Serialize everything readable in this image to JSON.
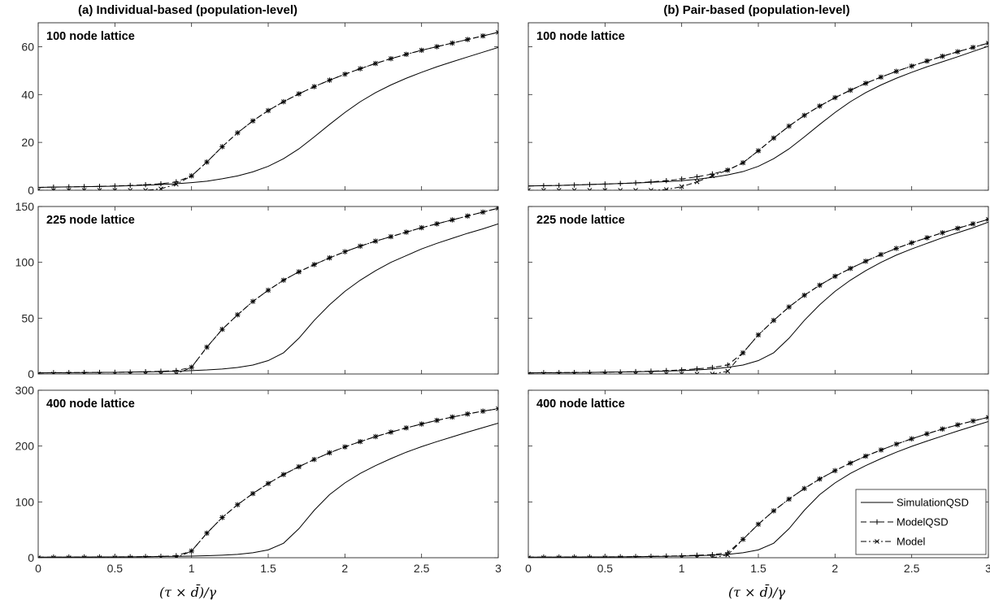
{
  "figure": {
    "columns": [
      {
        "title": "(a) Individual-based (population-level)"
      },
      {
        "title": "(b) Pair-based (population-level)"
      }
    ],
    "xlabel": "(τ × d̄)/γ"
  },
  "legend": {
    "placement": "bottom-right of panel (b) 400 node lattice",
    "entries": [
      {
        "label": "SimulationQSD",
        "line": "solid",
        "marker": "none"
      },
      {
        "label": "ModelQSD",
        "line": "dashed",
        "marker": "plus"
      },
      {
        "label": "Model",
        "line": "dash-dot",
        "marker": "x"
      }
    ]
  },
  "chart_data": [
    {
      "type": "line",
      "column": 0,
      "row": 0,
      "label": "100 node lattice",
      "xlim": [
        0,
        3
      ],
      "ylim": [
        0,
        70
      ],
      "xticks": [
        0,
        0.5,
        1,
        1.5,
        2,
        2.5,
        3
      ],
      "yticks": [
        0,
        20,
        40,
        60
      ],
      "x": [
        0,
        0.1,
        0.2,
        0.3,
        0.4,
        0.5,
        0.6,
        0.7,
        0.8,
        0.9,
        1.0,
        1.1,
        1.2,
        1.3,
        1.4,
        1.5,
        1.6,
        1.7,
        1.8,
        1.9,
        2.0,
        2.1,
        2.2,
        2.3,
        2.4,
        2.5,
        2.6,
        2.7,
        2.8,
        2.9,
        3.0
      ],
      "series": [
        {
          "name": "SimulationQSD",
          "values": [
            1.2,
            1.3,
            1.4,
            1.5,
            1.6,
            1.7,
            1.9,
            2.1,
            2.4,
            2.7,
            3.2,
            3.8,
            4.8,
            6.0,
            7.7,
            10.0,
            13.2,
            17.3,
            22.3,
            27.5,
            32.5,
            37.0,
            40.8,
            44.0,
            46.8,
            49.3,
            51.6,
            53.7,
            55.7,
            57.7,
            59.7
          ]
        },
        {
          "name": "ModelQSD",
          "values": [
            1.2,
            1.3,
            1.4,
            1.5,
            1.6,
            1.8,
            2.0,
            2.3,
            2.7,
            3.5,
            6.0,
            11.8,
            18.2,
            24.0,
            29.0,
            33.3,
            37.0,
            40.3,
            43.3,
            46.0,
            48.5,
            50.8,
            53.0,
            55.0,
            56.8,
            58.5,
            60.0,
            61.5,
            63.0,
            64.5,
            66.0
          ]
        },
        {
          "name": "Model",
          "values": [
            0,
            0,
            0,
            0,
            0,
            0,
            0,
            0,
            0.6,
            2.5,
            6.0,
            11.8,
            18.2,
            24.0,
            29.0,
            33.3,
            37.0,
            40.3,
            43.3,
            46.0,
            48.5,
            50.8,
            53.0,
            55.0,
            56.8,
            58.5,
            60.0,
            61.5,
            63.0,
            64.5,
            66.0
          ]
        }
      ]
    },
    {
      "type": "line",
      "column": 0,
      "row": 1,
      "label": "225 node lattice",
      "xlim": [
        0,
        3
      ],
      "ylim": [
        0,
        150
      ],
      "xticks": [
        0,
        0.5,
        1,
        1.5,
        2,
        2.5,
        3
      ],
      "yticks": [
        0,
        50,
        100,
        150
      ],
      "x": [
        0,
        0.1,
        0.2,
        0.3,
        0.4,
        0.5,
        0.6,
        0.7,
        0.8,
        0.9,
        1.0,
        1.1,
        1.2,
        1.3,
        1.4,
        1.5,
        1.6,
        1.7,
        1.8,
        1.9,
        2.0,
        2.1,
        2.2,
        2.3,
        2.4,
        2.5,
        2.6,
        2.7,
        2.8,
        2.9,
        3.0
      ],
      "series": [
        {
          "name": "SimulationQSD",
          "values": [
            1.0,
            1.1,
            1.2,
            1.3,
            1.4,
            1.5,
            1.7,
            1.9,
            2.1,
            2.5,
            3.0,
            3.6,
            4.5,
            5.8,
            8.0,
            12.0,
            19.0,
            32.0,
            48.0,
            62.0,
            74.0,
            84.0,
            92.5,
            100.0,
            106.0,
            112.0,
            117.0,
            121.5,
            126.0,
            130.0,
            134.5
          ]
        },
        {
          "name": "ModelQSD",
          "values": [
            1.0,
            1.1,
            1.2,
            1.3,
            1.4,
            1.5,
            1.7,
            2.0,
            2.4,
            3.0,
            6.0,
            24.0,
            40.0,
            53.0,
            65.0,
            75.0,
            84.0,
            91.5,
            98.0,
            104.0,
            109.5,
            114.5,
            119.0,
            123.0,
            127.0,
            131.0,
            134.5,
            138.0,
            141.5,
            145.0,
            148.5
          ]
        },
        {
          "name": "Model",
          "values": [
            0,
            0,
            0,
            0,
            0,
            0,
            0,
            0,
            0,
            0,
            6.0,
            24.0,
            40.0,
            53.0,
            65.0,
            75.0,
            84.0,
            91.5,
            98.0,
            104.0,
            109.5,
            114.5,
            119.0,
            123.0,
            127.0,
            131.0,
            134.5,
            138.0,
            141.5,
            145.0,
            148.5
          ]
        }
      ]
    },
    {
      "type": "line",
      "column": 0,
      "row": 2,
      "label": "400 node lattice",
      "xlim": [
        0,
        3
      ],
      "ylim": [
        0,
        300
      ],
      "xticks": [
        0,
        0.5,
        1,
        1.5,
        2,
        2.5,
        3
      ],
      "yticks": [
        0,
        100,
        200,
        300
      ],
      "x": [
        0,
        0.1,
        0.2,
        0.3,
        0.4,
        0.5,
        0.6,
        0.7,
        0.8,
        0.9,
        1.0,
        1.1,
        1.2,
        1.3,
        1.4,
        1.5,
        1.6,
        1.7,
        1.8,
        1.9,
        2.0,
        2.1,
        2.2,
        2.3,
        2.4,
        2.5,
        2.6,
        2.7,
        2.8,
        2.9,
        3.0
      ],
      "series": [
        {
          "name": "SimulationQSD",
          "values": [
            1.0,
            1.1,
            1.2,
            1.3,
            1.4,
            1.5,
            1.7,
            1.9,
            2.2,
            2.5,
            3.0,
            3.6,
            4.5,
            6.0,
            9.0,
            14.0,
            26.0,
            52.0,
            85.0,
            113.0,
            134.0,
            151.0,
            165.0,
            177.5,
            189.0,
            199.0,
            208.0,
            216.5,
            225.0,
            233.0,
            241.0
          ]
        },
        {
          "name": "ModelQSD",
          "values": [
            1.0,
            1.1,
            1.2,
            1.3,
            1.4,
            1.5,
            1.7,
            2.0,
            2.4,
            3.5,
            12.0,
            44.0,
            72.0,
            95.0,
            115.0,
            133.0,
            149.0,
            163.0,
            176.0,
            188.0,
            198.5,
            208.0,
            217.0,
            225.0,
            232.5,
            239.5,
            246.0,
            252.0,
            257.5,
            262.5,
            267.0
          ]
        },
        {
          "name": "Model",
          "values": [
            0,
            0,
            0,
            0,
            0,
            0,
            0,
            0,
            0,
            0,
            12.0,
            44.0,
            72.0,
            95.0,
            115.0,
            133.0,
            149.0,
            163.0,
            176.0,
            188.0,
            198.5,
            208.0,
            217.0,
            225.0,
            232.5,
            239.5,
            246.0,
            252.0,
            257.5,
            262.5,
            267.0
          ]
        }
      ]
    },
    {
      "type": "line",
      "column": 1,
      "row": 0,
      "label": "100 node lattice",
      "xlim": [
        0,
        3
      ],
      "ylim": [
        0,
        70
      ],
      "xticks": [
        0,
        0.5,
        1,
        1.5,
        2,
        2.5,
        3
      ],
      "yticks": [
        0,
        20,
        40,
        60
      ],
      "x": [
        0,
        0.1,
        0.2,
        0.3,
        0.4,
        0.5,
        0.6,
        0.7,
        0.8,
        0.9,
        1.0,
        1.1,
        1.2,
        1.3,
        1.4,
        1.5,
        1.6,
        1.7,
        1.8,
        1.9,
        2.0,
        2.1,
        2.2,
        2.3,
        2.4,
        2.5,
        2.6,
        2.7,
        2.8,
        2.9,
        3.0
      ],
      "series": [
        {
          "name": "SimulationQSD",
          "values": [
            1.8,
            1.9,
            2.0,
            2.2,
            2.4,
            2.6,
            2.8,
            3.0,
            3.3,
            3.6,
            4.0,
            4.6,
            5.4,
            6.4,
            7.8,
            10.0,
            13.2,
            17.3,
            22.3,
            27.5,
            32.5,
            37.0,
            40.8,
            44.0,
            46.8,
            49.3,
            51.6,
            53.7,
            55.8,
            58.0,
            60.2
          ]
        },
        {
          "name": "ModelQSD",
          "values": [
            1.8,
            1.9,
            2.0,
            2.2,
            2.4,
            2.6,
            2.8,
            3.1,
            3.5,
            4.0,
            4.7,
            5.6,
            6.8,
            8.4,
            11.5,
            16.5,
            21.8,
            26.8,
            31.3,
            35.2,
            38.7,
            41.8,
            44.7,
            47.3,
            49.7,
            51.9,
            54.0,
            56.0,
            57.9,
            59.7,
            61.5
          ]
        },
        {
          "name": "Model",
          "values": [
            0,
            0,
            0,
            0,
            0,
            0,
            0,
            0,
            0,
            0.3,
            1.5,
            3.5,
            6.0,
            8.4,
            11.5,
            16.5,
            21.8,
            26.8,
            31.3,
            35.2,
            38.7,
            41.8,
            44.7,
            47.3,
            49.7,
            51.9,
            54.0,
            56.0,
            57.9,
            59.7,
            61.5
          ]
        }
      ]
    },
    {
      "type": "line",
      "column": 1,
      "row": 1,
      "label": "225 node lattice",
      "xlim": [
        0,
        3
      ],
      "ylim": [
        0,
        150
      ],
      "xticks": [
        0,
        0.5,
        1,
        1.5,
        2,
        2.5,
        3
      ],
      "yticks": [
        0,
        50,
        100,
        150
      ],
      "x": [
        0,
        0.1,
        0.2,
        0.3,
        0.4,
        0.5,
        0.6,
        0.7,
        0.8,
        0.9,
        1.0,
        1.1,
        1.2,
        1.3,
        1.4,
        1.5,
        1.6,
        1.7,
        1.8,
        1.9,
        2.0,
        2.1,
        2.2,
        2.3,
        2.4,
        2.5,
        2.6,
        2.7,
        2.8,
        2.9,
        3.0
      ],
      "series": [
        {
          "name": "SimulationQSD",
          "values": [
            1.0,
            1.1,
            1.2,
            1.3,
            1.4,
            1.6,
            1.8,
            2.0,
            2.3,
            2.6,
            3.0,
            3.6,
            4.5,
            6.0,
            8.0,
            12.0,
            19.0,
            32.0,
            48.0,
            62.0,
            74.0,
            84.0,
            92.5,
            100.0,
            106.5,
            112.0,
            117.0,
            122.0,
            126.5,
            131.0,
            136.0
          ]
        },
        {
          "name": "ModelQSD",
          "values": [
            1.0,
            1.1,
            1.2,
            1.3,
            1.4,
            1.6,
            1.8,
            2.1,
            2.5,
            3.0,
            3.7,
            4.6,
            5.8,
            8.0,
            19.0,
            35.0,
            48.0,
            60.0,
            70.5,
            79.5,
            87.5,
            94.5,
            101.0,
            107.0,
            112.5,
            117.5,
            122.0,
            126.5,
            130.5,
            134.5,
            138.5
          ]
        },
        {
          "name": "Model",
          "values": [
            0,
            0,
            0,
            0,
            0,
            0,
            0,
            0,
            0,
            0,
            0,
            0,
            0,
            2.5,
            19.0,
            35.0,
            48.0,
            60.0,
            70.5,
            79.5,
            87.5,
            94.5,
            101.0,
            107.0,
            112.5,
            117.5,
            122.0,
            126.5,
            130.5,
            134.5,
            138.5
          ]
        }
      ]
    },
    {
      "type": "line",
      "column": 1,
      "row": 2,
      "label": "400 node lattice",
      "xlim": [
        0,
        3
      ],
      "ylim": [
        0,
        300
      ],
      "xticks": [
        0,
        0.5,
        1,
        1.5,
        2,
        2.5,
        3
      ],
      "yticks": [
        0,
        100,
        200,
        300
      ],
      "x": [
        0,
        0.1,
        0.2,
        0.3,
        0.4,
        0.5,
        0.6,
        0.7,
        0.8,
        0.9,
        1.0,
        1.1,
        1.2,
        1.3,
        1.4,
        1.5,
        1.6,
        1.7,
        1.8,
        1.9,
        2.0,
        2.1,
        2.2,
        2.3,
        2.4,
        2.5,
        2.6,
        2.7,
        2.8,
        2.9,
        3.0
      ],
      "series": [
        {
          "name": "SimulationQSD",
          "values": [
            1.0,
            1.1,
            1.2,
            1.3,
            1.4,
            1.5,
            1.7,
            1.9,
            2.2,
            2.5,
            3.0,
            3.6,
            4.5,
            6.0,
            9.0,
            14.0,
            26.0,
            52.0,
            85.0,
            113.0,
            134.0,
            151.0,
            165.0,
            177.5,
            189.0,
            199.5,
            209.0,
            218.0,
            227.0,
            235.5,
            244.0
          ]
        },
        {
          "name": "ModelQSD",
          "values": [
            1.0,
            1.1,
            1.2,
            1.3,
            1.4,
            1.5,
            1.7,
            2.0,
            2.4,
            2.9,
            3.5,
            4.4,
            5.5,
            9.0,
            33.0,
            60.0,
            84.0,
            105.0,
            124.0,
            141.0,
            156.0,
            169.5,
            182.0,
            193.0,
            203.5,
            213.0,
            222.0,
            230.5,
            238.0,
            245.0,
            251.5
          ]
        },
        {
          "name": "Model",
          "values": [
            0,
            0,
            0,
            0,
            0,
            0,
            0,
            0,
            0,
            0,
            0,
            0,
            0,
            5.0,
            33.0,
            60.0,
            84.0,
            105.0,
            124.0,
            141.0,
            156.0,
            169.5,
            182.0,
            193.0,
            203.5,
            213.0,
            222.0,
            230.5,
            238.0,
            245.0,
            251.5
          ]
        }
      ]
    }
  ]
}
